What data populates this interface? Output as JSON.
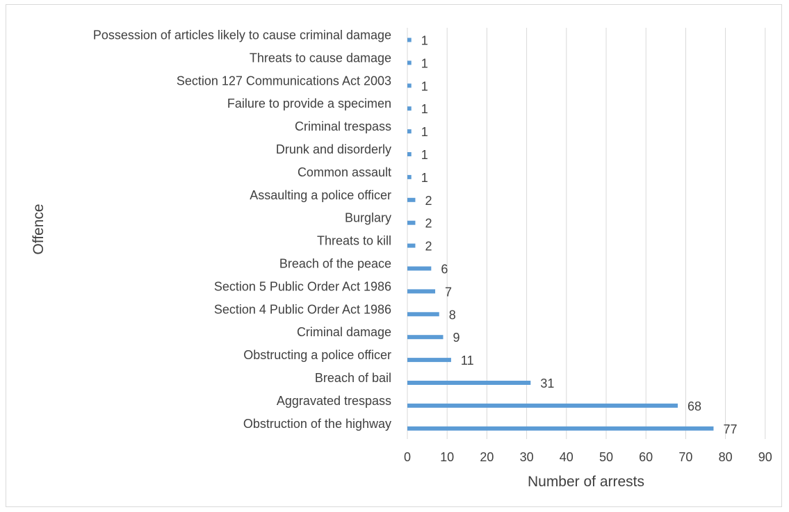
{
  "chart_data": {
    "type": "bar",
    "orientation": "horizontal",
    "title": "",
    "xlabel": "Number of arrests",
    "ylabel": "Offence",
    "xlim": [
      0,
      90
    ],
    "xticks": [
      "0",
      "10",
      "20",
      "30",
      "40",
      "50",
      "60",
      "70",
      "80",
      "90"
    ],
    "grid": "vertical",
    "bar_color": "#5b9bd5",
    "categories": [
      "Possession of articles likely to cause criminal damage",
      "Threats to cause damage",
      "Section 127 Communications Act 2003",
      "Failure to provide a specimen",
      "Criminal trespass",
      "Drunk and disorderly",
      "Common assault",
      "Assaulting a police officer",
      "Burglary",
      "Threats to kill",
      "Breach of the peace",
      "Section 5 Public Order Act 1986",
      "Section 4 Public Order Act 1986",
      "Criminal damage",
      "Obstructing a police officer",
      "Breach of bail",
      "Aggravated trespass",
      "Obstruction of the highway"
    ],
    "values": [
      1,
      1,
      1,
      1,
      1,
      1,
      1,
      2,
      2,
      2,
      6,
      7,
      8,
      9,
      11,
      31,
      68,
      77
    ],
    "data_labels": [
      "1",
      "1",
      "1",
      "1",
      "1",
      "1",
      "1",
      "2",
      "2",
      "2",
      "6",
      "7",
      "8",
      "9",
      "11",
      "31",
      "68",
      "77"
    ]
  }
}
